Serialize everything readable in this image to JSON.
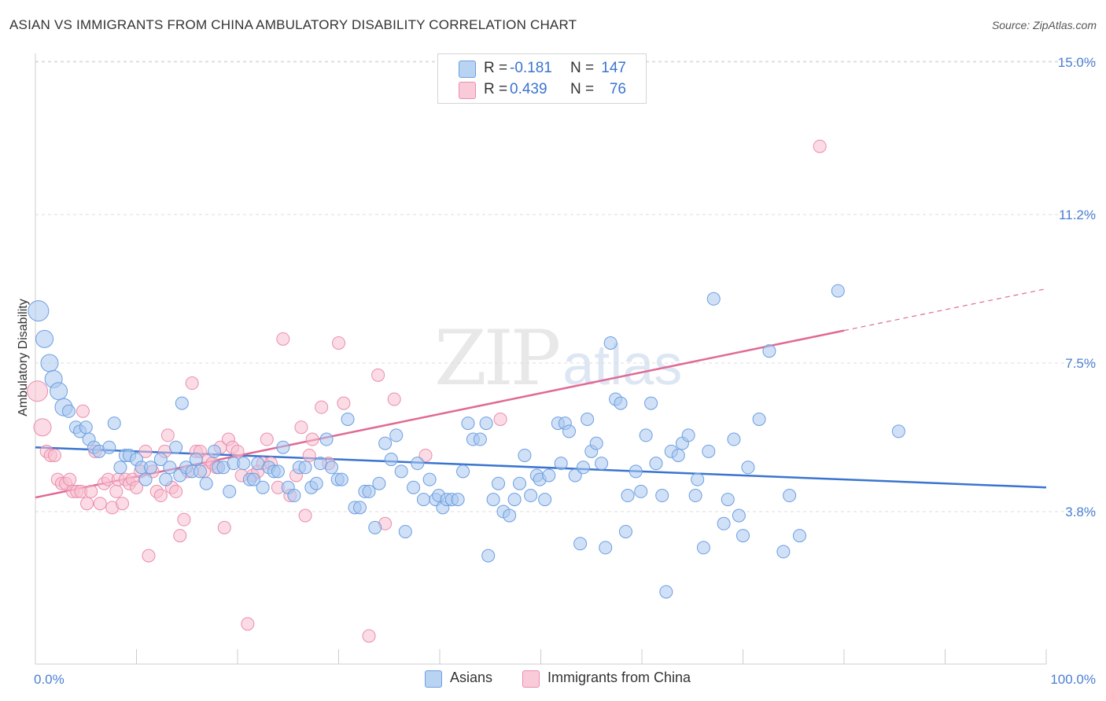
{
  "title": "ASIAN VS IMMIGRANTS FROM CHINA AMBULATORY DISABILITY CORRELATION CHART",
  "source": "Source: ZipAtlas.com",
  "watermark": {
    "zip": "ZIP",
    "atlas": "atlas"
  },
  "colors": {
    "asian_fill": "#a9c8f0",
    "asian_stroke": "#6c9ee0",
    "asian_line": "#3a74d0",
    "china_fill": "#f7bfd0",
    "china_stroke": "#ea8dac",
    "china_line": "#e06a95",
    "tick_text": "#4a7fd0",
    "grid": "#dddddd"
  },
  "legend_top": {
    "rows": [
      {
        "r_label": "R =",
        "r_value": "-0.181",
        "n_label": "N =",
        "n_value": "147"
      },
      {
        "r_label": "R =",
        "r_value": "0.439",
        "n_label": "N =",
        "n_value": "76"
      }
    ]
  },
  "legend_bottom": {
    "items": [
      "Asians",
      "Immigrants from China"
    ]
  },
  "chart_data": {
    "type": "scatter",
    "title": "ASIAN VS IMMIGRANTS FROM CHINA AMBULATORY DISABILITY CORRELATION CHART",
    "xlabel": "",
    "ylabel": "Ambulatory Disability",
    "xlim": [
      0,
      100
    ],
    "ylim": [
      0,
      15.5
    ],
    "x_tick_labels": [
      "0.0%",
      "100.0%"
    ],
    "y_ticks": [
      3.8,
      7.5,
      11.2,
      15.0
    ],
    "y_tick_labels": [
      "3.8%",
      "7.5%",
      "11.2%",
      "15.0%"
    ],
    "grid": true,
    "legend_position": "top-center",
    "series": [
      {
        "name": "Asians",
        "r": -0.181,
        "n": 147,
        "trend": {
          "x": [
            0,
            100
          ],
          "y": [
            5.4,
            4.4
          ],
          "dashed_from": null
        },
        "points": [
          [
            0.3,
            8.8
          ],
          [
            0.9,
            8.1
          ],
          [
            1.4,
            7.5
          ],
          [
            1.8,
            7.1
          ],
          [
            2.3,
            6.8
          ],
          [
            2.8,
            6.4
          ],
          [
            3.3,
            6.3
          ],
          [
            4.0,
            5.9
          ],
          [
            4.4,
            5.8
          ],
          [
            5.0,
            5.9
          ],
          [
            5.3,
            5.6
          ],
          [
            5.8,
            5.4
          ],
          [
            6.3,
            5.3
          ],
          [
            7.3,
            5.4
          ],
          [
            7.8,
            6.0
          ],
          [
            8.4,
            4.9
          ],
          [
            8.9,
            5.2
          ],
          [
            9.3,
            5.2
          ],
          [
            10.0,
            5.1
          ],
          [
            10.5,
            4.9
          ],
          [
            10.9,
            4.6
          ],
          [
            11.4,
            4.9
          ],
          [
            12.4,
            5.1
          ],
          [
            12.9,
            4.6
          ],
          [
            13.3,
            4.9
          ],
          [
            13.9,
            5.4
          ],
          [
            14.3,
            4.7
          ],
          [
            14.5,
            6.5
          ],
          [
            14.9,
            4.9
          ],
          [
            15.5,
            4.8
          ],
          [
            15.9,
            5.1
          ],
          [
            16.3,
            4.8
          ],
          [
            16.9,
            4.5
          ],
          [
            17.7,
            5.3
          ],
          [
            18.1,
            4.9
          ],
          [
            18.6,
            4.9
          ],
          [
            19.2,
            4.3
          ],
          [
            19.6,
            5.0
          ],
          [
            20.6,
            5.0
          ],
          [
            21.2,
            4.6
          ],
          [
            21.6,
            4.6
          ],
          [
            22.0,
            5.0
          ],
          [
            22.5,
            4.4
          ],
          [
            23.1,
            4.9
          ],
          [
            23.6,
            4.8
          ],
          [
            24.0,
            4.8
          ],
          [
            24.5,
            5.4
          ],
          [
            25.0,
            4.4
          ],
          [
            25.6,
            4.2
          ],
          [
            26.1,
            4.9
          ],
          [
            26.7,
            4.9
          ],
          [
            27.3,
            4.4
          ],
          [
            27.8,
            4.5
          ],
          [
            28.2,
            5.0
          ],
          [
            28.8,
            5.6
          ],
          [
            29.3,
            4.9
          ],
          [
            29.9,
            4.6
          ],
          [
            30.3,
            4.6
          ],
          [
            30.9,
            6.1
          ],
          [
            31.6,
            3.9
          ],
          [
            32.1,
            3.9
          ],
          [
            32.6,
            4.3
          ],
          [
            33.0,
            4.3
          ],
          [
            33.6,
            3.4
          ],
          [
            34.0,
            4.5
          ],
          [
            34.6,
            5.5
          ],
          [
            35.2,
            5.1
          ],
          [
            35.7,
            5.7
          ],
          [
            36.2,
            4.8
          ],
          [
            36.6,
            3.3
          ],
          [
            37.4,
            4.4
          ],
          [
            37.8,
            5.0
          ],
          [
            38.4,
            4.1
          ],
          [
            39.0,
            4.6
          ],
          [
            39.6,
            4.1
          ],
          [
            39.9,
            4.2
          ],
          [
            40.3,
            3.9
          ],
          [
            40.7,
            4.1
          ],
          [
            41.2,
            4.1
          ],
          [
            41.8,
            4.1
          ],
          [
            42.3,
            4.8
          ],
          [
            42.8,
            6.0
          ],
          [
            43.3,
            5.6
          ],
          [
            44.0,
            5.6
          ],
          [
            44.6,
            6.0
          ],
          [
            44.8,
            2.7
          ],
          [
            45.3,
            4.1
          ],
          [
            45.8,
            4.5
          ],
          [
            46.3,
            3.8
          ],
          [
            46.9,
            3.7
          ],
          [
            47.4,
            4.1
          ],
          [
            47.9,
            4.5
          ],
          [
            48.4,
            5.2
          ],
          [
            49.0,
            4.2
          ],
          [
            49.6,
            4.7
          ],
          [
            49.9,
            4.6
          ],
          [
            50.4,
            4.1
          ],
          [
            50.8,
            4.7
          ],
          [
            51.7,
            6.0
          ],
          [
            52.0,
            5.0
          ],
          [
            52.4,
            6.0
          ],
          [
            52.8,
            5.8
          ],
          [
            53.4,
            4.7
          ],
          [
            53.9,
            3.0
          ],
          [
            54.2,
            4.9
          ],
          [
            54.6,
            6.1
          ],
          [
            55.0,
            5.3
          ],
          [
            55.5,
            5.5
          ],
          [
            56.0,
            5.0
          ],
          [
            56.4,
            2.9
          ],
          [
            56.9,
            8.0
          ],
          [
            57.4,
            6.6
          ],
          [
            57.9,
            6.5
          ],
          [
            58.4,
            3.3
          ],
          [
            58.6,
            4.2
          ],
          [
            59.4,
            4.8
          ],
          [
            59.9,
            4.3
          ],
          [
            60.4,
            5.7
          ],
          [
            60.9,
            6.5
          ],
          [
            61.4,
            5.0
          ],
          [
            62.0,
            4.2
          ],
          [
            62.4,
            1.8
          ],
          [
            62.9,
            5.3
          ],
          [
            63.6,
            5.2
          ],
          [
            64.0,
            5.5
          ],
          [
            64.6,
            5.7
          ],
          [
            65.3,
            4.2
          ],
          [
            65.5,
            4.6
          ],
          [
            66.1,
            2.9
          ],
          [
            66.6,
            5.3
          ],
          [
            67.1,
            9.1
          ],
          [
            68.1,
            3.5
          ],
          [
            68.5,
            4.1
          ],
          [
            69.1,
            5.6
          ],
          [
            69.6,
            3.7
          ],
          [
            70.0,
            3.2
          ],
          [
            70.5,
            4.9
          ],
          [
            71.6,
            6.1
          ],
          [
            72.6,
            7.8
          ],
          [
            74.0,
            2.8
          ],
          [
            74.6,
            4.2
          ],
          [
            75.6,
            3.2
          ],
          [
            79.4,
            9.3
          ],
          [
            85.4,
            5.8
          ]
        ],
        "sizes_large": [
          [
            0.3,
            8.8
          ],
          [
            0.9,
            8.1
          ],
          [
            1.4,
            7.5
          ],
          [
            1.8,
            7.1
          ],
          [
            2.3,
            6.8
          ],
          [
            2.8,
            6.4
          ]
        ]
      },
      {
        "name": "Immigrants from China",
        "r": 0.439,
        "n": 76,
        "trend": {
          "x": [
            0,
            100
          ],
          "y": [
            4.15,
            9.35
          ],
          "dashed_from": 80
        },
        "points": [
          [
            0.2,
            6.8
          ],
          [
            0.7,
            5.9
          ],
          [
            1.1,
            5.3
          ],
          [
            1.5,
            5.2
          ],
          [
            1.9,
            5.2
          ],
          [
            2.2,
            4.6
          ],
          [
            2.6,
            4.5
          ],
          [
            3.0,
            4.5
          ],
          [
            3.4,
            4.6
          ],
          [
            3.7,
            4.3
          ],
          [
            4.1,
            4.3
          ],
          [
            4.5,
            4.3
          ],
          [
            4.7,
            6.3
          ],
          [
            5.1,
            4.0
          ],
          [
            5.5,
            4.3
          ],
          [
            5.9,
            5.3
          ],
          [
            6.4,
            4.0
          ],
          [
            6.8,
            4.5
          ],
          [
            7.2,
            4.6
          ],
          [
            7.6,
            3.9
          ],
          [
            8.0,
            4.3
          ],
          [
            8.2,
            4.6
          ],
          [
            8.6,
            4.0
          ],
          [
            8.9,
            4.6
          ],
          [
            9.3,
            4.5
          ],
          [
            9.6,
            4.6
          ],
          [
            10.0,
            4.4
          ],
          [
            10.4,
            4.8
          ],
          [
            10.9,
            5.3
          ],
          [
            11.2,
            2.7
          ],
          [
            11.6,
            4.8
          ],
          [
            12.0,
            4.3
          ],
          [
            12.4,
            4.2
          ],
          [
            12.8,
            5.3
          ],
          [
            13.1,
            5.7
          ],
          [
            13.5,
            4.4
          ],
          [
            13.9,
            4.3
          ],
          [
            14.3,
            3.2
          ],
          [
            14.7,
            3.6
          ],
          [
            15.1,
            4.8
          ],
          [
            15.5,
            7.0
          ],
          [
            15.9,
            5.3
          ],
          [
            16.3,
            5.3
          ],
          [
            16.7,
            4.8
          ],
          [
            17.1,
            5.1
          ],
          [
            17.5,
            5.0
          ],
          [
            17.9,
            4.9
          ],
          [
            18.3,
            5.4
          ],
          [
            18.7,
            3.4
          ],
          [
            19.1,
            5.6
          ],
          [
            19.5,
            5.4
          ],
          [
            20.0,
            5.3
          ],
          [
            20.4,
            4.7
          ],
          [
            21.0,
            1.0
          ],
          [
            21.5,
            4.7
          ],
          [
            22.0,
            4.8
          ],
          [
            22.5,
            5.0
          ],
          [
            22.9,
            5.6
          ],
          [
            23.3,
            5.0
          ],
          [
            24.0,
            4.4
          ],
          [
            24.5,
            8.1
          ],
          [
            25.2,
            4.2
          ],
          [
            25.8,
            4.7
          ],
          [
            26.3,
            5.9
          ],
          [
            26.7,
            3.7
          ],
          [
            27.1,
            5.2
          ],
          [
            27.4,
            5.6
          ],
          [
            28.3,
            6.4
          ],
          [
            29.0,
            5.0
          ],
          [
            30.0,
            8.0
          ],
          [
            30.5,
            6.5
          ],
          [
            33.0,
            0.7
          ],
          [
            33.9,
            7.2
          ],
          [
            34.6,
            3.5
          ],
          [
            35.5,
            6.6
          ],
          [
            38.6,
            5.2
          ],
          [
            46.0,
            6.1
          ],
          [
            77.6,
            12.9
          ]
        ],
        "sizes_large": [
          [
            0.2,
            6.8
          ],
          [
            0.7,
            5.9
          ]
        ]
      }
    ]
  }
}
